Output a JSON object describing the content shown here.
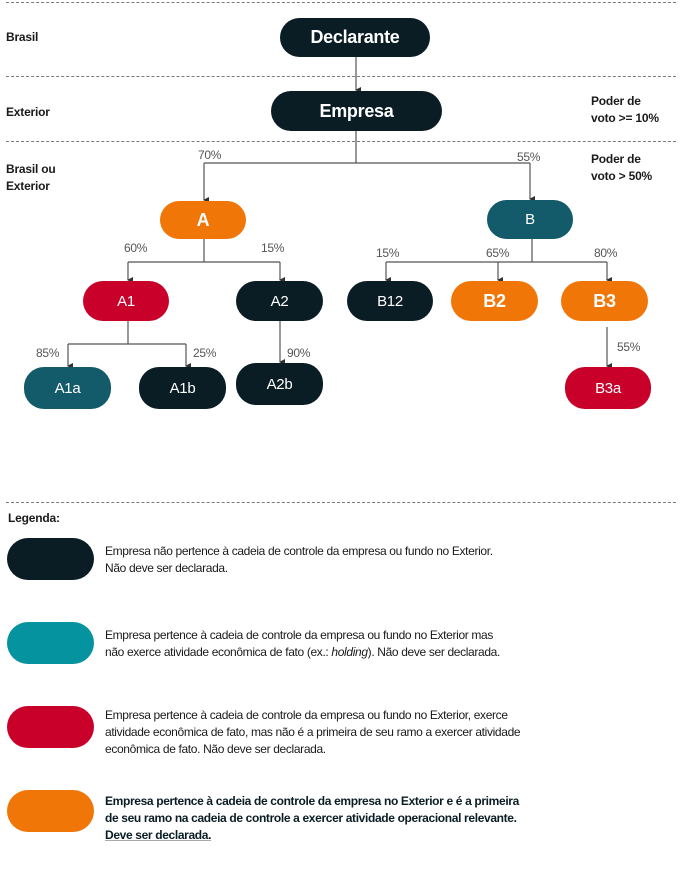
{
  "rows": {
    "brasil": "Brasil",
    "exterior": "Exterior",
    "brasil_ou_exterior_1": "Brasil ou",
    "brasil_ou_exterior_2": "Exterior"
  },
  "thresholds": {
    "t1_line1": "Poder de",
    "t1_line2": "voto >= 10%",
    "t2_line1": "Poder de",
    "t2_line2": "voto > 50%"
  },
  "colors": {
    "dark": "#0a1c24",
    "teal_node": "#135a6a",
    "teal_legend": "#0593a0",
    "red": "#c8002a",
    "orange": "#f07608"
  },
  "nodes": {
    "declarante": "Declarante",
    "empresa": "Empresa",
    "a": "A",
    "b": "B",
    "a1": "A1",
    "a2": "A2",
    "b12": "B12",
    "b2": "B2",
    "b3": "B3",
    "a1a": "A1a",
    "a1b": "A1b",
    "a2b": "A2b",
    "b3a": "B3a"
  },
  "edges": {
    "empresa_a": "70%",
    "empresa_b": "55%",
    "a_a1": "60%",
    "a_a2": "15%",
    "b_b12": "15%",
    "b_b2": "65%",
    "b_b3": "80%",
    "a1_a1a": "85%",
    "a1_a1b": "25%",
    "a2_a2b": "90%",
    "b3_b3a": "55%"
  },
  "legend": {
    "title": "Legenda:",
    "items": [
      {
        "line1": "Empresa não pertence à cadeia de controle da empresa ou fundo no Exterior.",
        "line2": "Não deve ser declarada."
      },
      {
        "line1": "Empresa pertence à cadeia de controle da empresa ou fundo no Exterior mas",
        "line2_pre": "não exerce atividade econômica de fato (ex.: ",
        "line2_em": "holding",
        "line2_post": "). Não deve ser declarada."
      },
      {
        "line1": "Empresa pertence à cadeia de controle da empresa ou fundo no Exterior, exerce",
        "line2": "atividade econômica de fato, mas não é a primeira de seu ramo a exercer atividade",
        "line3": "econômica de fato. Não deve ser declarada."
      },
      {
        "line1": "Empresa pertence à cadeia de controle da empresa no Exterior e é a primeira",
        "line2": "de seu ramo na cadeia de controle a exercer atividade operacional relevante.",
        "line3": "Deve ser declarada."
      }
    ]
  }
}
